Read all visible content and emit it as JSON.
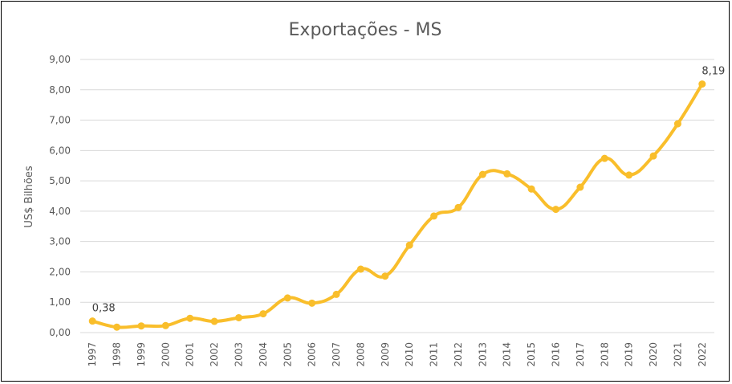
{
  "chart_data": {
    "type": "line",
    "title": "Exportações - MS",
    "xlabel": "",
    "ylabel": "US$ Bilhões",
    "ylim": [
      0,
      9
    ],
    "yticks": [
      "0,00",
      "1,00",
      "2,00",
      "3,00",
      "4,00",
      "5,00",
      "6,00",
      "7,00",
      "8,00",
      "9,00"
    ],
    "grid": true,
    "legend": "none",
    "color": "#F9BE2B",
    "categories": [
      "1997",
      "1998",
      "1999",
      "2000",
      "2001",
      "2002",
      "2003",
      "2004",
      "2005",
      "2006",
      "2007",
      "2008",
      "2009",
      "2010",
      "2011",
      "2012",
      "2013",
      "2014",
      "2015",
      "2016",
      "2017",
      "2018",
      "2019",
      "2020",
      "2021",
      "2022"
    ],
    "values": [
      0.38,
      0.18,
      0.22,
      0.23,
      0.47,
      0.37,
      0.49,
      0.62,
      1.14,
      0.97,
      1.26,
      2.09,
      1.86,
      2.88,
      3.84,
      4.12,
      5.21,
      5.23,
      4.73,
      4.06,
      4.79,
      5.74,
      5.19,
      5.82,
      6.88,
      8.19
    ],
    "data_labels": [
      {
        "index": 0,
        "text": "0,38"
      },
      {
        "index": 25,
        "text": "8,19"
      }
    ]
  }
}
